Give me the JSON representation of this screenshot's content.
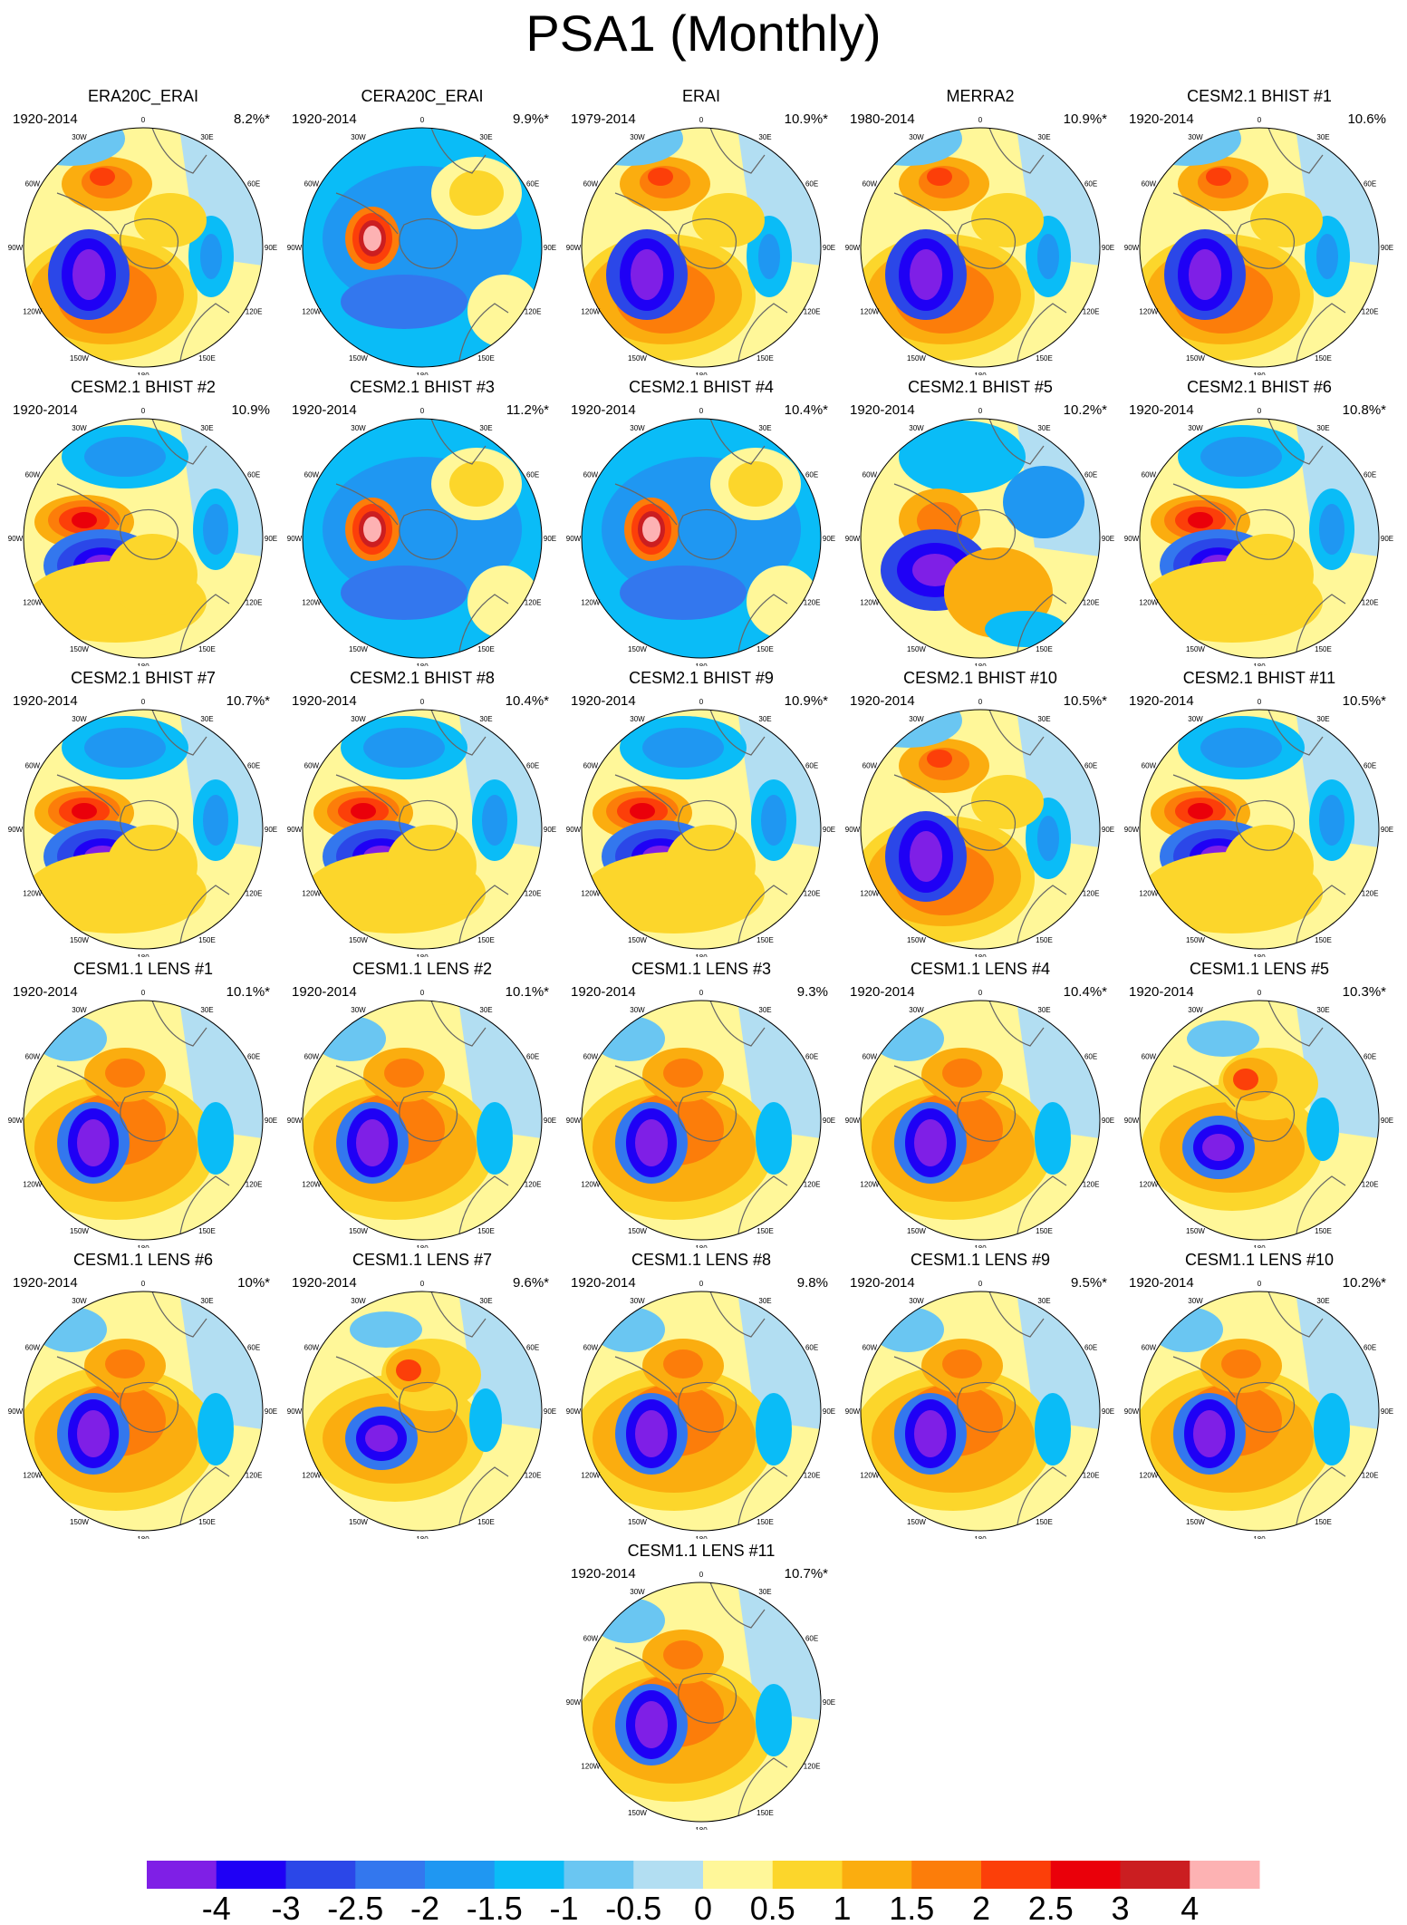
{
  "title": "PSA1 (Monthly)",
  "chart_data": {
    "type": "heatmap",
    "description_type": "polar stereographic contour maps",
    "lon_labels": [
      "0",
      "30E",
      "60E",
      "90E",
      "120E",
      "150E",
      "180",
      "150W",
      "120W",
      "90W",
      "60W",
      "30W"
    ],
    "panels": [
      {
        "name": "ERA20C_ERAI",
        "period": "1920-2014",
        "variance": "8.2%*"
      },
      {
        "name": "CERA20C_ERAI",
        "period": "1920-2014",
        "variance": "9.9%*"
      },
      {
        "name": "ERAI",
        "period": "1979-2014",
        "variance": "10.9%*"
      },
      {
        "name": "MERRA2",
        "period": "1980-2014",
        "variance": "10.9%*"
      },
      {
        "name": "CESM2.1 BHIST #1",
        "period": "1920-2014",
        "variance": "10.6%"
      },
      {
        "name": "CESM2.1 BHIST #2",
        "period": "1920-2014",
        "variance": "10.9%"
      },
      {
        "name": "CESM2.1 BHIST #3",
        "period": "1920-2014",
        "variance": "11.2%*"
      },
      {
        "name": "CESM2.1 BHIST #4",
        "period": "1920-2014",
        "variance": "10.4%*"
      },
      {
        "name": "CESM2.1 BHIST #5",
        "period": "1920-2014",
        "variance": "10.2%*"
      },
      {
        "name": "CESM2.1 BHIST #6",
        "period": "1920-2014",
        "variance": "10.8%*"
      },
      {
        "name": "CESM2.1 BHIST #7",
        "period": "1920-2014",
        "variance": "10.7%*"
      },
      {
        "name": "CESM2.1 BHIST #8",
        "period": "1920-2014",
        "variance": "10.4%*"
      },
      {
        "name": "CESM2.1 BHIST #9",
        "period": "1920-2014",
        "variance": "10.9%*"
      },
      {
        "name": "CESM2.1 BHIST #10",
        "period": "1920-2014",
        "variance": "10.5%*"
      },
      {
        "name": "CESM2.1 BHIST #11",
        "period": "1920-2014",
        "variance": "10.5%*"
      },
      {
        "name": "CESM1.1 LENS #1",
        "period": "1920-2014",
        "variance": "10.1%*"
      },
      {
        "name": "CESM1.1 LENS #2",
        "period": "1920-2014",
        "variance": "10.1%*"
      },
      {
        "name": "CESM1.1 LENS #3",
        "period": "1920-2014",
        "variance": "9.3%"
      },
      {
        "name": "CESM1.1 LENS #4",
        "period": "1920-2014",
        "variance": "10.4%*"
      },
      {
        "name": "CESM1.1 LENS #5",
        "period": "1920-2014",
        "variance": "10.3%*"
      },
      {
        "name": "CESM1.1 LENS #6",
        "period": "1920-2014",
        "variance": "10%*"
      },
      {
        "name": "CESM1.1 LENS #7",
        "period": "1920-2014",
        "variance": "9.6%*"
      },
      {
        "name": "CESM1.1 LENS #8",
        "period": "1920-2014",
        "variance": "9.8%"
      },
      {
        "name": "CESM1.1 LENS #9",
        "period": "1920-2014",
        "variance": "9.5%*"
      },
      {
        "name": "CESM1.1 LENS #10",
        "period": "1920-2014",
        "variance": "10.2%*"
      },
      {
        "name": "CESM1.1 LENS #11",
        "period": "1920-2014",
        "variance": "10.7%*"
      }
    ],
    "colorbar": {
      "ticks": [
        "-4",
        "-3",
        "-2.5",
        "-2",
        "-1.5",
        "-1",
        "-0.5",
        "0",
        "0.5",
        "1",
        "1.5",
        "2",
        "2.5",
        "3",
        "4"
      ],
      "colors": [
        "#7f1fe6",
        "#1f00f5",
        "#2b47e8",
        "#3377ee",
        "#1f97f2",
        "#0abcf7",
        "#6ac6f2",
        "#b2def2",
        "#fff799",
        "#fcd62b",
        "#fbad0f",
        "#fc7d0a",
        "#fc3f09",
        "#ea000a",
        "#cb1e21",
        "#fdb2b3"
      ]
    }
  }
}
